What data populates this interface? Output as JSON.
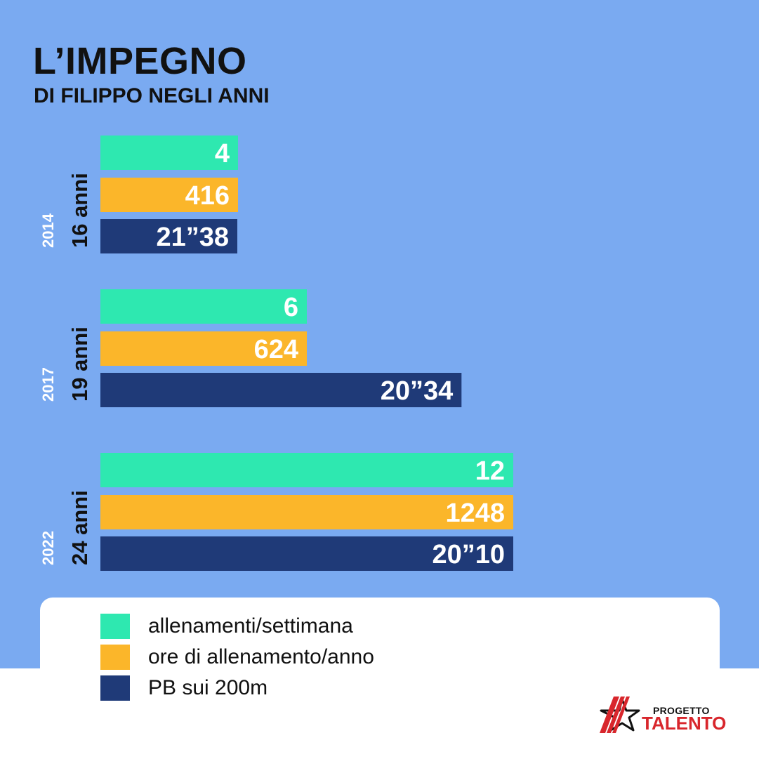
{
  "header": {
    "title": "L’IMPEGNO",
    "subtitle": "DI FILIPPO NEGLI ANNI"
  },
  "colors": {
    "background": "#7aaaf1",
    "sessions": "#2ee8b0",
    "hours": "#fbb62a",
    "pb": "#1f3a78"
  },
  "chart_data": {
    "type": "bar",
    "orientation": "horizontal",
    "groups": [
      {
        "year": "2014",
        "age": "16 anni",
        "sessions": 4,
        "sessions_label": "4",
        "hours": 416,
        "hours_label": "416",
        "pb": "21”38",
        "pb_seconds": 21.38
      },
      {
        "year": "2017",
        "age": "19 anni",
        "sessions": 6,
        "sessions_label": "6",
        "hours": 624,
        "hours_label": "624",
        "pb": "20”34",
        "pb_seconds": 20.34
      },
      {
        "year": "2022",
        "age": "24 anni",
        "sessions": 12,
        "sessions_label": "12",
        "hours": 1248,
        "hours_label": "1248",
        "pb": "20”10",
        "pb_seconds": 20.1
      }
    ],
    "series": [
      {
        "name": "allenamenti/settimana",
        "key": "sessions"
      },
      {
        "name": "ore di allenamento/anno",
        "key": "hours"
      },
      {
        "name": "PB sui 200m",
        "key": "pb"
      }
    ]
  },
  "legend": {
    "items": [
      {
        "label": "allenamenti/settimana",
        "color": "#2ee8b0"
      },
      {
        "label": "ore di allenamento/anno",
        "color": "#fbb62a"
      },
      {
        "label": "PB sui 200m",
        "color": "#1f3a78"
      }
    ]
  },
  "logo": {
    "line1": "PROGETTO",
    "line2": "TALENTO"
  }
}
